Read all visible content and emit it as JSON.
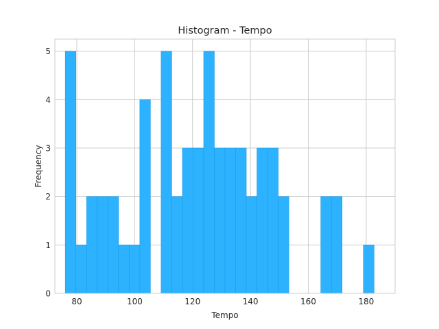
{
  "chart_data": {
    "type": "bar",
    "title": "Histogram - Tempo",
    "xlabel": "Tempo",
    "ylabel": "Frequency",
    "xlim": [
      72.4,
      190.0
    ],
    "ylim": [
      0,
      5.25
    ],
    "xticks": [
      80,
      100,
      120,
      140,
      160,
      180
    ],
    "yticks": [
      0,
      1,
      2,
      3,
      4,
      5
    ],
    "grid": true,
    "bar_color": "#2db2ff",
    "bar_edge_color": "#1e9be0",
    "grid_color": "#cccccc",
    "bin_start": 76.0,
    "bin_width": 3.68,
    "counts": [
      5,
      1,
      2,
      2,
      2,
      1,
      1,
      4,
      0,
      5,
      2,
      3,
      3,
      5,
      3,
      3,
      3,
      2,
      3,
      3,
      2,
      0,
      0,
      0,
      2,
      2,
      0,
      0,
      1
    ]
  }
}
